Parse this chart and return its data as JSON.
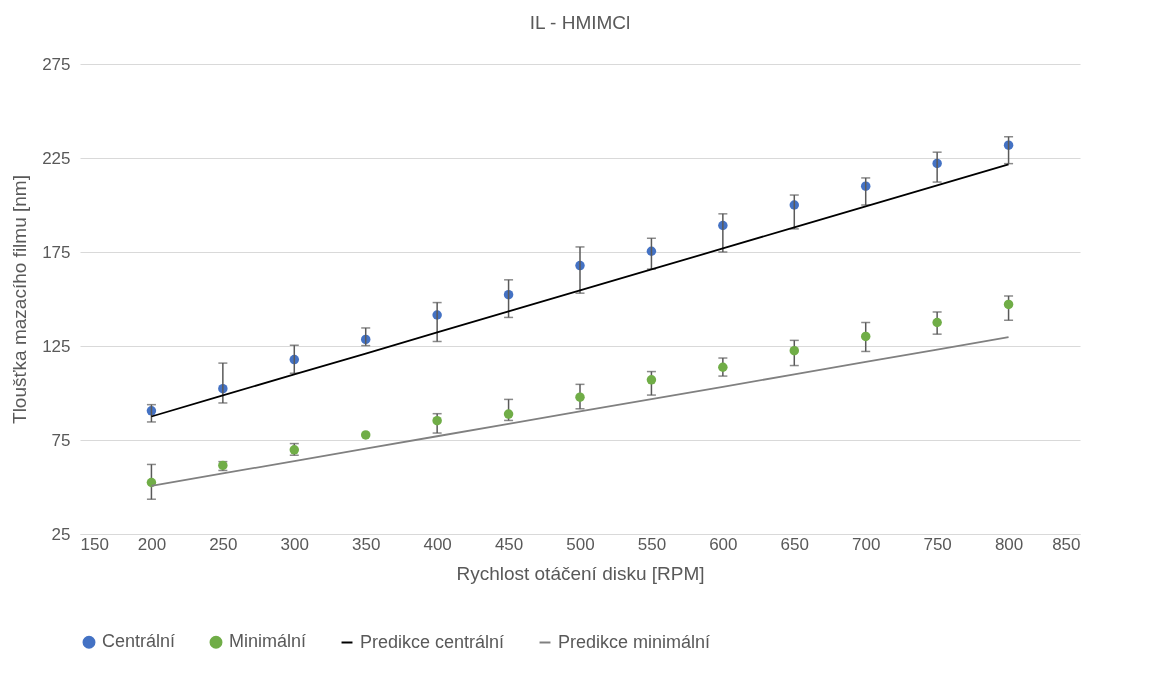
{
  "chart_data": {
    "type": "scatter",
    "title": "IL - HMIMCl",
    "xlabel": "Rychlost otáčení disku [RPM]",
    "ylabel": "Tloušťka mazacího filmu [nm]",
    "x": [
      200,
      250,
      300,
      350,
      400,
      450,
      500,
      550,
      600,
      650,
      700,
      750,
      800
    ],
    "series": [
      {
        "name": "Centrální",
        "color": "#4472c4",
        "marker": "circle",
        "values": [
          90.5,
          102.3,
          117.8,
          128.5,
          141.5,
          152.3,
          167.8,
          175.4,
          189.1,
          200,
          210,
          222.1,
          231.8
        ],
        "errors": [
          [
            84.6,
            93.8
          ],
          [
            94.7,
            115.9
          ],
          [
            110.5,
            125.4
          ],
          [
            125.2,
            134.6
          ],
          [
            127.4,
            148.1
          ],
          [
            140.2,
            160.2
          ],
          [
            153.1,
            177.7
          ],
          [
            165.9,
            182.3
          ],
          [
            175,
            195.3
          ],
          [
            187.3,
            205.3
          ],
          [
            200,
            214.4
          ],
          [
            212.2,
            228.1
          ],
          [
            222,
            236.3
          ]
        ]
      },
      {
        "name": "Minimální",
        "color": "#70ad47",
        "marker": "circle",
        "values": [
          52.4,
          61.5,
          69.8,
          77.7,
          85.3,
          88.8,
          97.8,
          107,
          113.7,
          122.5,
          130.1,
          137.5,
          147.1
        ],
        "errors": [
          [
            43.5,
            62
          ],
          [
            58.8,
            63.5
          ],
          [
            66.9,
            73.1
          ],
          null,
          [
            78.7,
            89
          ],
          [
            85.4,
            96.6
          ],
          [
            91.6,
            104.6
          ],
          [
            98.9,
            111.4
          ],
          [
            109,
            118.6
          ],
          [
            114.6,
            128
          ],
          [
            122.1,
            137.5
          ],
          [
            131.3,
            143.1
          ],
          [
            138.7,
            151.6
          ]
        ]
      },
      {
        "name": "Predikce centrální",
        "type": "line",
        "color": "#000000",
        "values": [
          87.5,
          98.7,
          109.9,
          121.0,
          132.2,
          143.4,
          154.6,
          165.7,
          176.9,
          188.1,
          199.3,
          210.4,
          221.6
        ]
      },
      {
        "name": "Predikce minimální",
        "type": "line",
        "color": "#808080",
        "values": [
          50.6,
          57.2,
          63.8,
          70.4,
          77.0,
          83.6,
          90.2,
          96.7,
          103.3,
          109.9,
          116.5,
          123.1,
          129.7
        ]
      }
    ],
    "xlim": [
      150,
      850
    ],
    "xticks": [
      150,
      200,
      250,
      300,
      350,
      400,
      450,
      500,
      550,
      600,
      650,
      700,
      750,
      800,
      850
    ],
    "ylim": [
      25,
      275
    ],
    "yticks": [
      25,
      75,
      125,
      175,
      225,
      275
    ],
    "grid": "y",
    "legend": "bottom"
  }
}
